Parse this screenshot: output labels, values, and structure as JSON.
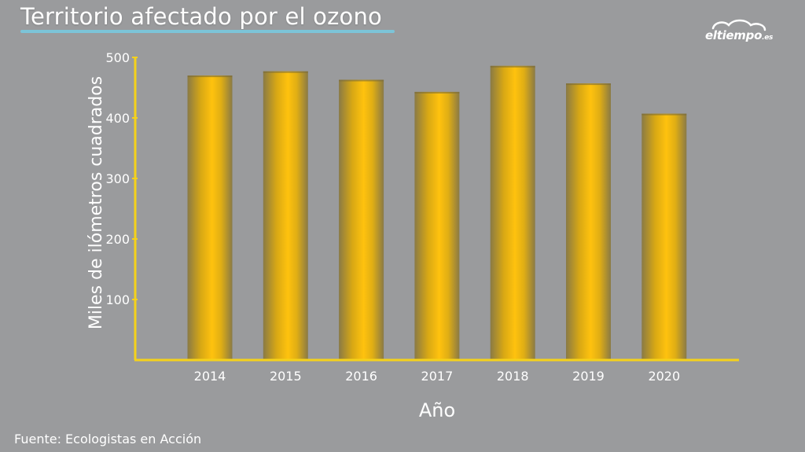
{
  "header": {
    "title": "Territorio afectado por el ozono"
  },
  "logo": {
    "text_main": "eltiempo",
    "text_suffix": ".es",
    "icon": "cloud-icon"
  },
  "footer": {
    "source": "Fuente: Ecologistas en Acción"
  },
  "colors": {
    "background": "#9a9b9d",
    "axis": "#f5d21a",
    "bar_light": "#ffc20e",
    "bar_dark": "#8a7a45",
    "title_underline": "#7cc4d8"
  },
  "chart_data": {
    "type": "bar",
    "title": "Territorio afectado por el ozono",
    "xlabel": "Año",
    "ylabel": "Miles de ilómetros cuadrados",
    "categories": [
      "2014",
      "2015",
      "2016",
      "2017",
      "2018",
      "2019",
      "2020"
    ],
    "values": [
      470,
      477,
      463,
      443,
      486,
      457,
      407
    ],
    "ylim": [
      0,
      500
    ],
    "yticks": [
      100,
      200,
      300,
      400,
      500
    ],
    "grid": false,
    "legend": "none"
  }
}
